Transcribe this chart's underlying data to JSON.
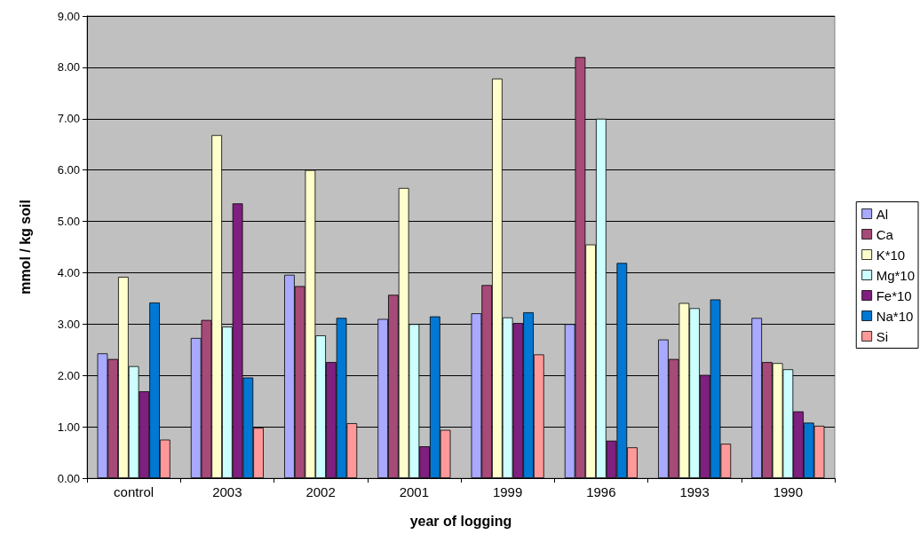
{
  "chart_data": {
    "type": "bar",
    "xlabel": "year of logging",
    "ylabel": "mmol / kg soil",
    "categories": [
      "control",
      "2003",
      "2002",
      "2001",
      "1999",
      "1996",
      "1993",
      "1990"
    ],
    "series": [
      {
        "name": "Al",
        "color": "#a9a9ff",
        "values": [
          2.43,
          2.73,
          3.96,
          3.1,
          3.21,
          3.0,
          2.7,
          3.12
        ]
      },
      {
        "name": "Ca",
        "color": "#a64a78",
        "values": [
          2.32,
          3.08,
          3.74,
          3.57,
          3.76,
          8.2,
          2.32,
          2.26
        ]
      },
      {
        "name": "K*10",
        "color": "#ffffcc",
        "values": [
          3.92,
          6.68,
          6.0,
          5.65,
          7.78,
          4.55,
          3.41,
          2.24
        ]
      },
      {
        "name": "Mg*10",
        "color": "#ccffff",
        "values": [
          2.18,
          2.95,
          2.78,
          3.0,
          3.13,
          7.0,
          3.31,
          2.12
        ]
      },
      {
        "name": "Fe*10",
        "color": "#7f1f7f",
        "values": [
          1.69,
          5.35,
          2.26,
          0.62,
          3.02,
          0.73,
          2.01,
          1.3
        ]
      },
      {
        "name": "Na*10",
        "color": "#0078d4",
        "values": [
          3.42,
          1.96,
          3.12,
          3.15,
          3.23,
          4.19,
          3.48,
          1.08
        ]
      },
      {
        "name": "Si",
        "color": "#ff9999",
        "values": [
          0.75,
          0.98,
          1.07,
          0.94,
          2.41,
          0.6,
          0.67,
          1.02
        ]
      }
    ],
    "ylim": [
      0,
      9
    ],
    "yticks": [
      {
        "value": 0,
        "label": "0.00"
      },
      {
        "value": 1,
        "label": "1.00"
      },
      {
        "value": 2,
        "label": "2.00"
      },
      {
        "value": 3,
        "label": "3.00"
      },
      {
        "value": 4,
        "label": "4.00"
      },
      {
        "value": 5,
        "label": "5.00"
      },
      {
        "value": 6,
        "label": "6.00"
      },
      {
        "value": 7,
        "label": "7.00"
      },
      {
        "value": 8,
        "label": "8.00"
      },
      {
        "value": 9,
        "label": "9.00"
      }
    ],
    "grid": "y",
    "legend": "right"
  }
}
